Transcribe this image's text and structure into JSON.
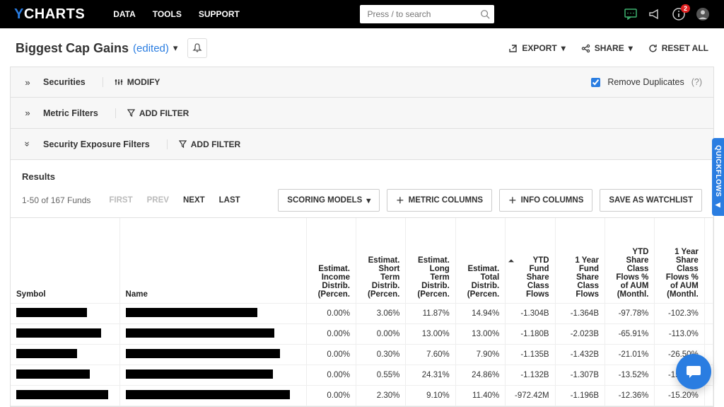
{
  "topnav": {
    "data": "DATA",
    "tools": "TOOLS",
    "support": "SUPPORT"
  },
  "search": {
    "placeholder": "Press / to search"
  },
  "notif_badge": "2",
  "title": {
    "main": "Biggest Cap Gains",
    "edited": "(edited)"
  },
  "actions": {
    "export": "EXPORT",
    "share": "SHARE",
    "reset": "RESET ALL"
  },
  "filters": {
    "securities": "Securities",
    "modify": "MODIFY",
    "remove_dup": "Remove Duplicates",
    "metric": "Metric Filters",
    "addfilter": "ADD FILTER",
    "exposure": "Security Exposure Filters"
  },
  "results": {
    "label": "Results",
    "range": "1-50 of 167 Funds",
    "pager": {
      "first": "FIRST",
      "prev": "PREV",
      "next": "NEXT",
      "last": "LAST"
    },
    "btns": {
      "scoring": "SCORING MODELS",
      "metric": "METRIC COLUMNS",
      "info": "INFO COLUMNS",
      "save": "SAVE AS WATCHLIST"
    }
  },
  "columns": {
    "symbol": "Symbol",
    "name": "Name",
    "c1": "Estimat. Income Distrib. (Percen.",
    "c2": "Estimat. Short Term Distrib. (Percen.",
    "c3": "Estimat. Long Term Distrib. (Percen.",
    "c4": "Estimat. Total Distrib. (Percen.",
    "c5": "YTD Fund Share Class Flows",
    "c6": "1 Year Fund Share Class Flows",
    "c7": "YTD Share Class Flows % of AUM (Monthl.",
    "c8": "1 Year Share Class Flows % of AUM (Monthl."
  },
  "rows": [
    {
      "sw": 100,
      "nw": 186,
      "v": [
        "0.00%",
        "3.06%",
        "11.87%",
        "14.94%",
        "-1.304B",
        "-1.364B",
        "-97.78%",
        "-102.3%"
      ]
    },
    {
      "sw": 120,
      "nw": 210,
      "v": [
        "0.00%",
        "0.00%",
        "13.00%",
        "13.00%",
        "-1.180B",
        "-2.023B",
        "-65.91%",
        "-113.0%"
      ]
    },
    {
      "sw": 86,
      "nw": 218,
      "v": [
        "0.00%",
        "0.30%",
        "7.60%",
        "7.90%",
        "-1.135B",
        "-1.432B",
        "-21.01%",
        "-26.50%"
      ]
    },
    {
      "sw": 104,
      "nw": 208,
      "v": [
        "0.00%",
        "0.55%",
        "24.31%",
        "24.86%",
        "-1.132B",
        "-1.307B",
        "-13.52%",
        "-15.61%"
      ]
    },
    {
      "sw": 130,
      "nw": 232,
      "v": [
        "0.00%",
        "2.30%",
        "9.10%",
        "11.40%",
        "-972.42M",
        "-1.196B",
        "-12.36%",
        "-15.20%"
      ]
    }
  ],
  "quickflows": "QUICKFLOWS"
}
